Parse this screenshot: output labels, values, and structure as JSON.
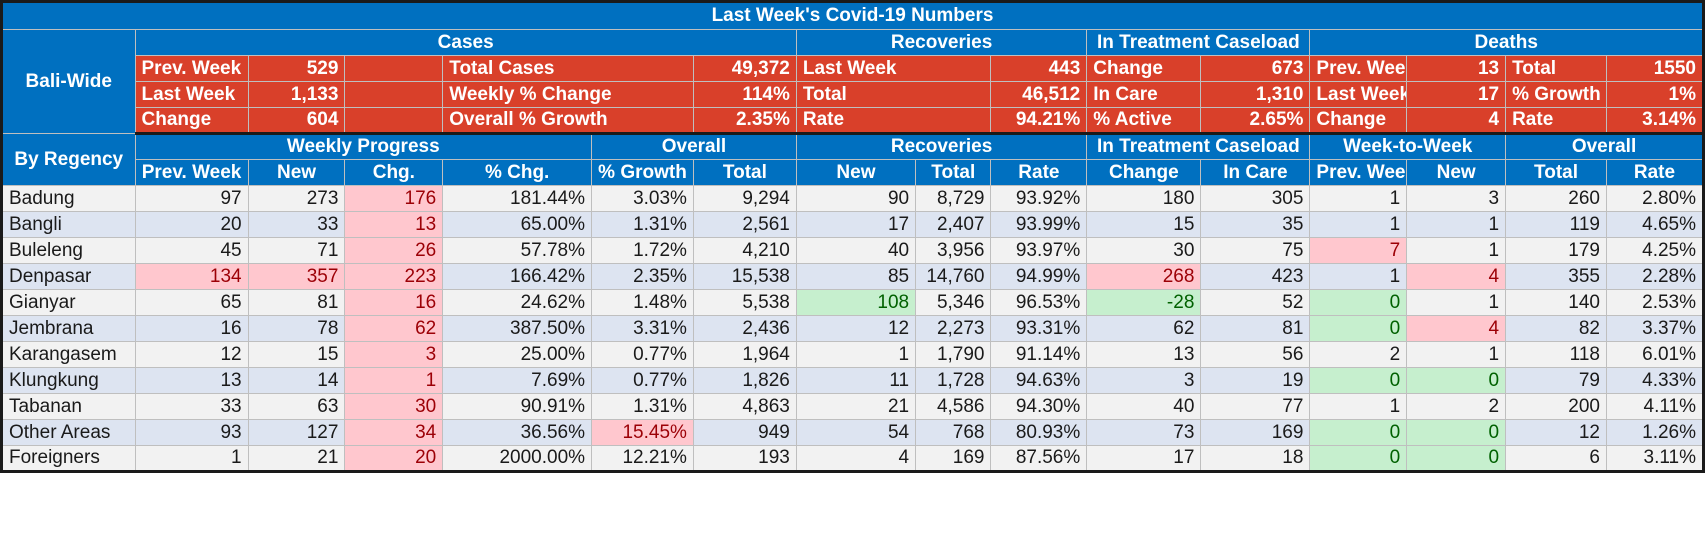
{
  "title": "Last Week's Covid-19 Numbers",
  "bali": {
    "label": "Bali-Wide",
    "sections": {
      "cases": "Cases",
      "recoveries": "Recoveries",
      "treatment": "In Treatment Caseload",
      "deaths": "Deaths"
    },
    "rows": [
      [
        "Prev. Week",
        "529",
        "Total Cases",
        "49,372",
        "Last Week",
        "443",
        "Change",
        "673",
        "Prev. Week",
        "13",
        "Total",
        "1550"
      ],
      [
        "Last Week",
        "1,133",
        "Weekly % Change",
        "114%",
        "Total",
        "46,512",
        "In Care",
        "1,310",
        "Last Week",
        "17",
        "% Growth",
        "1%"
      ],
      [
        "Change",
        "604",
        "Overall % Growth",
        "2.35%",
        "Rate",
        "94.21%",
        "% Active",
        "2.65%",
        "Change",
        "4",
        "Rate",
        "3.14%"
      ]
    ]
  },
  "regency": {
    "label": "By Regency",
    "groups": {
      "weekly": "Weekly Progress",
      "overall": "Overall",
      "recoveries": "Recoveries",
      "treatment": "In Treatment Caseload",
      "wtw": "Week-to-Week",
      "overall2": "Overall"
    },
    "columns": [
      "Prev. Week",
      "New",
      "Chg.",
      "% Chg.",
      "% Growth",
      "Total",
      "New",
      "Total",
      "Rate",
      "Change",
      "In Care",
      "Prev. Week",
      "New",
      "Total",
      "Rate"
    ],
    "rows": [
      {
        "name": "Badung",
        "v": [
          "97",
          "273",
          "176",
          "181.44%",
          "3.03%",
          "9,294",
          "90",
          "8,729",
          "93.92%",
          "180",
          "305",
          "1",
          "3",
          "260",
          "2.80%"
        ]
      },
      {
        "name": "Bangli",
        "v": [
          "20",
          "33",
          "13",
          "65.00%",
          "1.31%",
          "2,561",
          "17",
          "2,407",
          "93.99%",
          "15",
          "35",
          "1",
          "1",
          "119",
          "4.65%"
        ]
      },
      {
        "name": "Buleleng",
        "v": [
          "45",
          "71",
          "26",
          "57.78%",
          "1.72%",
          "4,210",
          "40",
          "3,956",
          "93.97%",
          "30",
          "75",
          "7",
          "1",
          "179",
          "4.25%"
        ]
      },
      {
        "name": "Denpasar",
        "v": [
          "134",
          "357",
          "223",
          "166.42%",
          "2.35%",
          "15,538",
          "85",
          "14,760",
          "94.99%",
          "268",
          "423",
          "1",
          "4",
          "355",
          "2.28%"
        ]
      },
      {
        "name": "Gianyar",
        "v": [
          "65",
          "81",
          "16",
          "24.62%",
          "1.48%",
          "5,538",
          "108",
          "5,346",
          "96.53%",
          "-28",
          "52",
          "0",
          "1",
          "140",
          "2.53%"
        ]
      },
      {
        "name": "Jembrana",
        "v": [
          "16",
          "78",
          "62",
          "387.50%",
          "3.31%",
          "2,436",
          "12",
          "2,273",
          "93.31%",
          "62",
          "81",
          "0",
          "4",
          "82",
          "3.37%"
        ]
      },
      {
        "name": "Karangasem",
        "v": [
          "12",
          "15",
          "3",
          "25.00%",
          "0.77%",
          "1,964",
          "1",
          "1,790",
          "91.14%",
          "13",
          "56",
          "2",
          "1",
          "118",
          "6.01%"
        ]
      },
      {
        "name": "Klungkung",
        "v": [
          "13",
          "14",
          "1",
          "7.69%",
          "0.77%",
          "1,826",
          "11",
          "1,728",
          "94.63%",
          "3",
          "19",
          "0",
          "0",
          "79",
          "4.33%"
        ]
      },
      {
        "name": "Tabanan",
        "v": [
          "33",
          "63",
          "30",
          "90.91%",
          "1.31%",
          "4,863",
          "21",
          "4,586",
          "94.30%",
          "40",
          "77",
          "1",
          "2",
          "200",
          "4.11%"
        ]
      },
      {
        "name": "Other Areas",
        "v": [
          "93",
          "127",
          "34",
          "36.56%",
          "15.45%",
          "949",
          "54",
          "768",
          "80.93%",
          "73",
          "169",
          "0",
          "0",
          "12",
          "1.26%"
        ]
      },
      {
        "name": "Foreigners",
        "v": [
          "1",
          "21",
          "20",
          "2000.00%",
          "12.21%",
          "193",
          "4",
          "169",
          "87.56%",
          "17",
          "18",
          "0",
          "0",
          "6",
          "3.11%"
        ]
      }
    ]
  },
  "colors": {
    "header_blue": "#0070c0",
    "summary_red": "#d9402a",
    "highlight_red": "#ffc7ce",
    "highlight_green": "#c6efce"
  }
}
